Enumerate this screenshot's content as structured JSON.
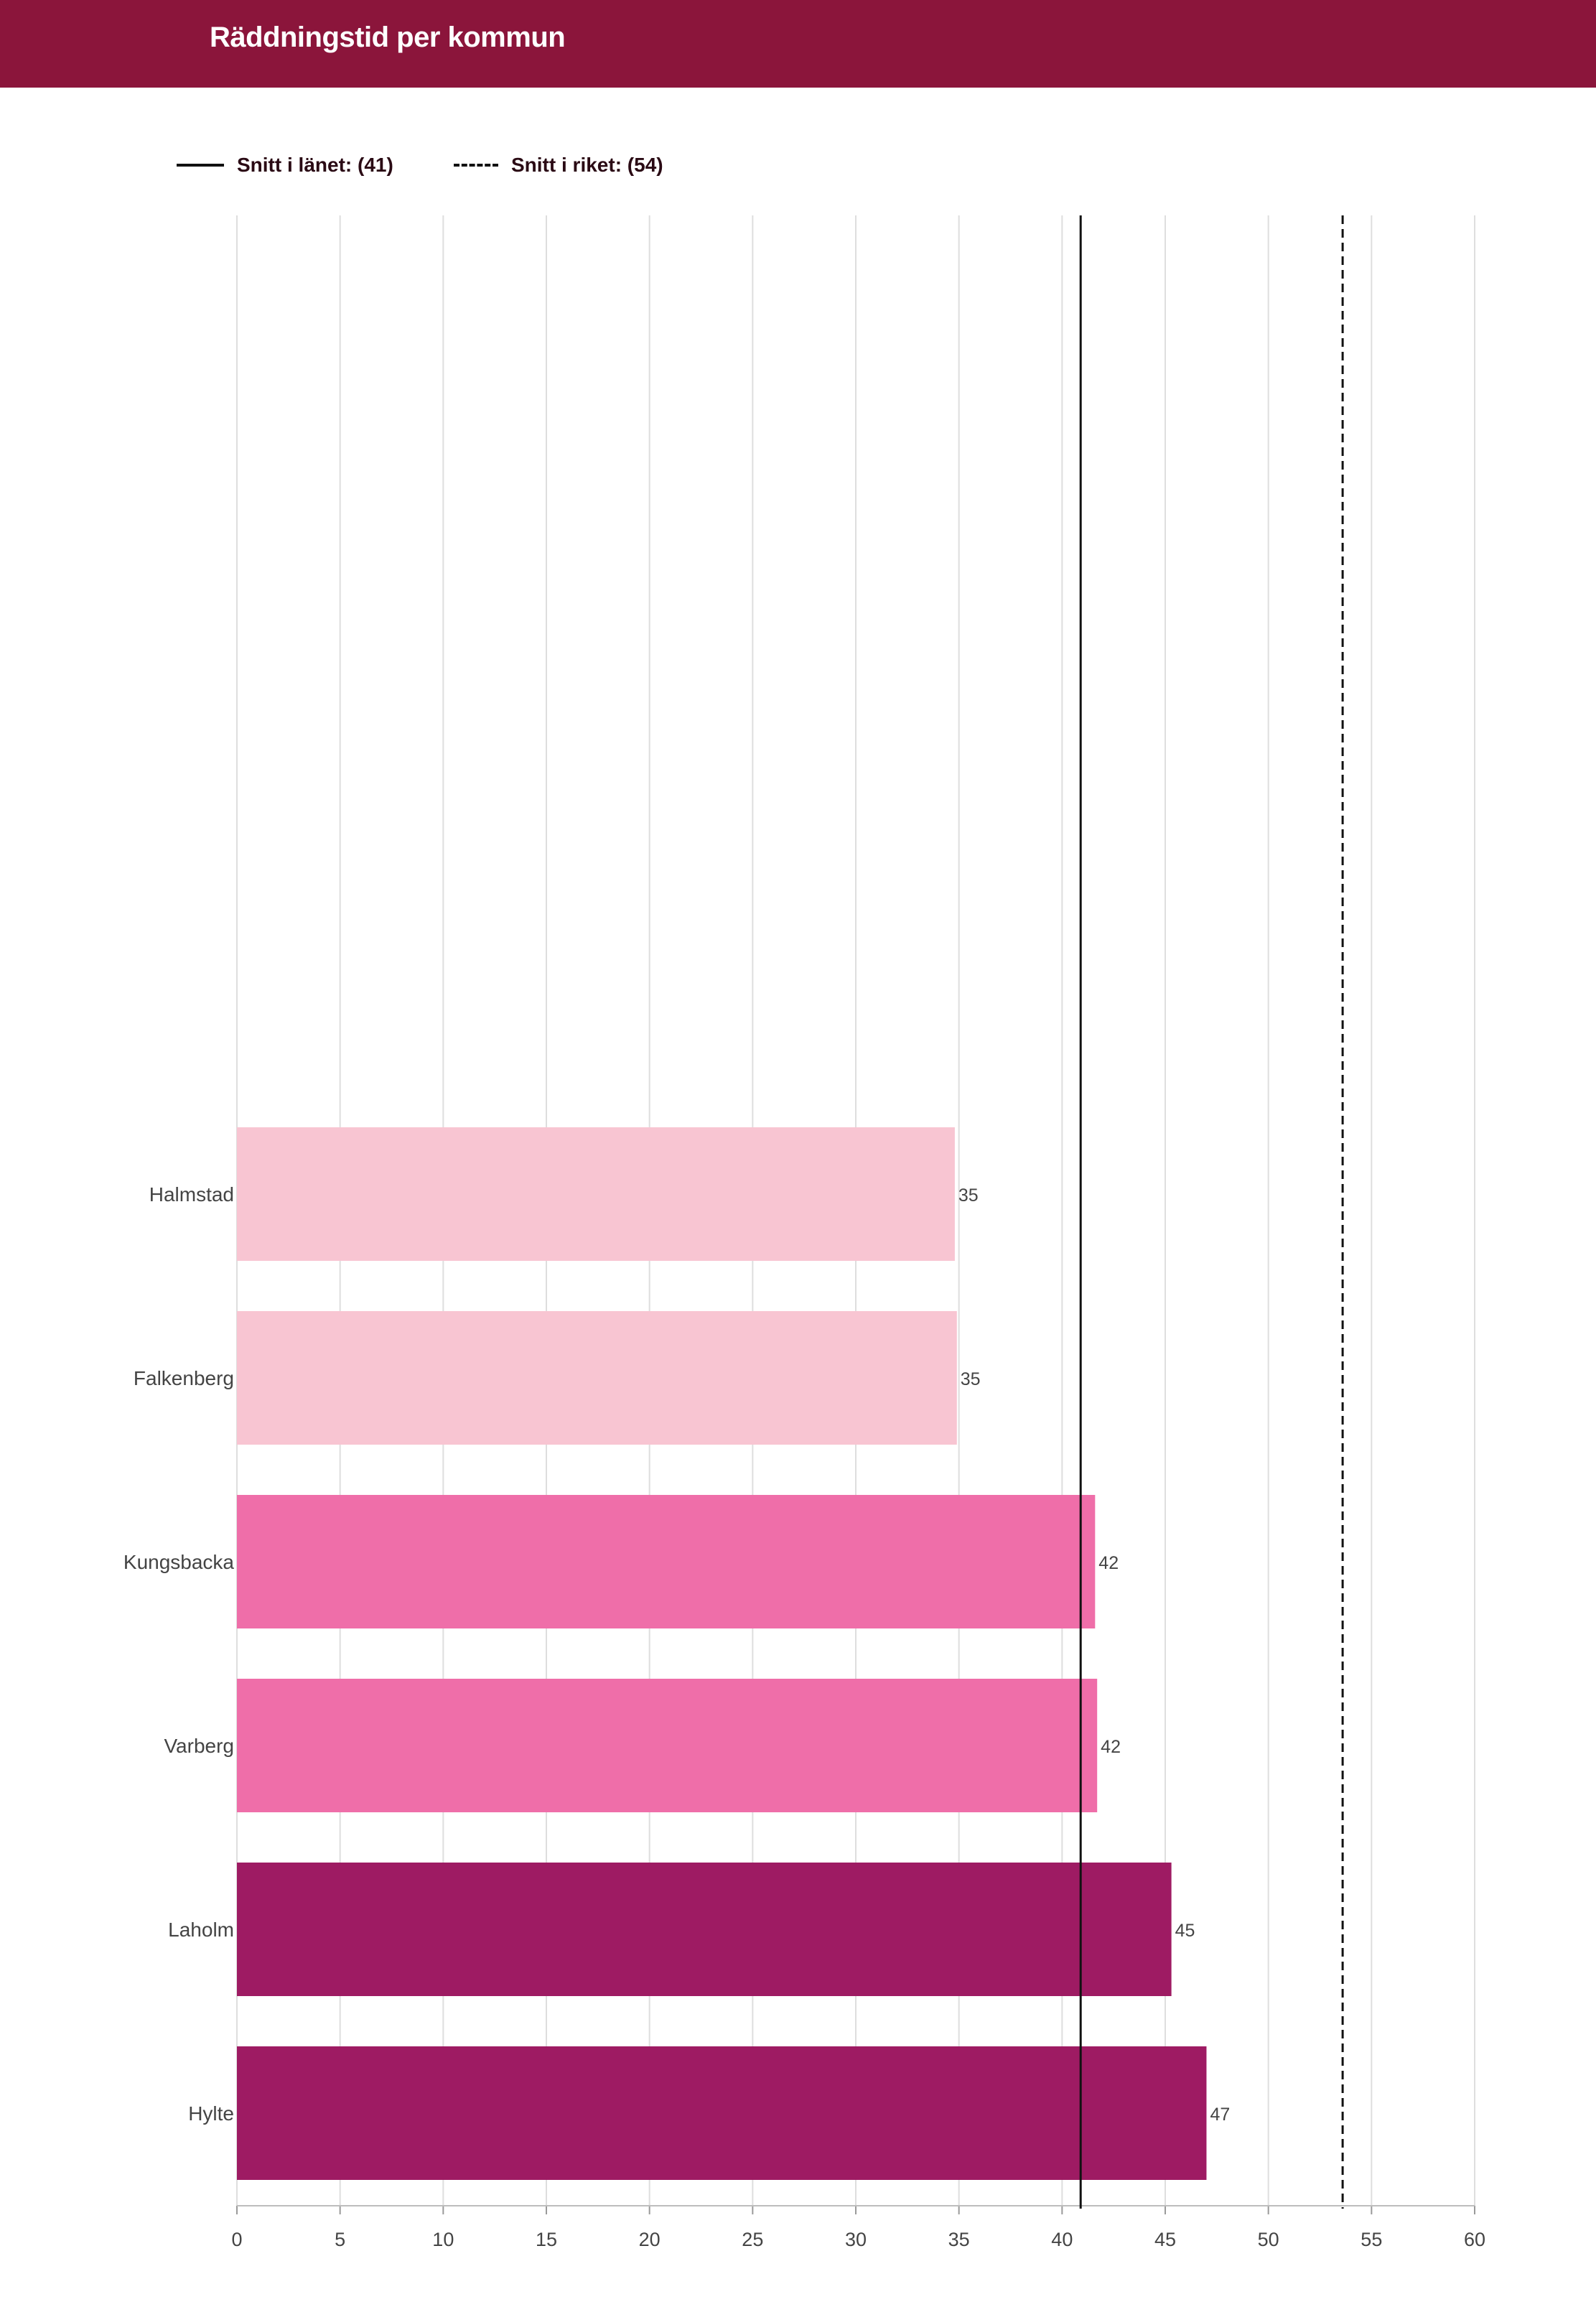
{
  "header": {
    "title": "Räddningstid per kommun"
  },
  "legend": {
    "items": [
      {
        "label": "Snitt i länet: (41)",
        "style": "solid"
      },
      {
        "label": "Snitt i riket: (54)",
        "style": "dashed"
      }
    ]
  },
  "colors": {
    "header": "#8b153b",
    "light_pink": "#f8c5d2",
    "mid_pink": "#ef6ea9",
    "dark_magenta": "#9e1b63",
    "grid": "#dedede",
    "ref_line": "#111111"
  },
  "chart_data": {
    "type": "bar",
    "orientation": "horizontal",
    "categories": [
      "Halmstad",
      "Falkenberg",
      "Kungsbacka",
      "Varberg",
      "Laholm",
      "Hylte"
    ],
    "values": [
      34.8,
      34.9,
      41.6,
      41.7,
      45.3,
      47.0
    ],
    "data_labels": [
      "35",
      "35",
      "42",
      "42",
      "45",
      "47"
    ],
    "bar_colors": [
      "#f8c5d2",
      "#f8c5d2",
      "#ef6ea9",
      "#ef6ea9",
      "#9e1b63",
      "#9e1b63"
    ],
    "xlim": [
      0,
      60
    ],
    "xticks": [
      "0",
      "5",
      "10",
      "15",
      "20",
      "25",
      "30",
      "35",
      "40",
      "45",
      "50",
      "55",
      "60"
    ],
    "reference_lines": [
      {
        "label": "Snitt i länet: (41)",
        "value": 40.9,
        "style": "solid"
      },
      {
        "label": "Snitt i riket: (54)",
        "value": 53.6,
        "style": "dashed"
      }
    ],
    "grid": true,
    "legend_position": "top-left"
  }
}
